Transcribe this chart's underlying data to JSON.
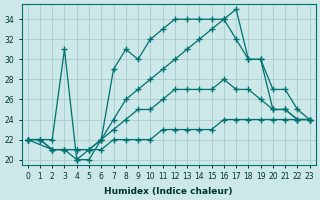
{
  "background_color": "#cce8e8",
  "grid_color": "#aacccc",
  "line_color": "#007070",
  "xlabel": "Humidex (Indice chaleur)",
  "xlim": [
    -0.5,
    23.5
  ],
  "ylim": [
    19.5,
    35.5
  ],
  "yticks": [
    20,
    22,
    24,
    26,
    28,
    30,
    32,
    34
  ],
  "xticks": [
    0,
    1,
    2,
    3,
    4,
    5,
    6,
    7,
    8,
    9,
    10,
    11,
    12,
    13,
    14,
    15,
    16,
    17,
    18,
    19,
    20,
    21,
    22,
    23
  ],
  "line1": {
    "x": [
      0,
      1,
      2,
      3,
      4,
      5,
      6,
      7,
      8,
      9,
      10,
      11,
      12,
      13,
      14,
      15,
      16,
      17,
      18,
      19,
      20,
      21,
      22,
      23
    ],
    "y": [
      22,
      22,
      22,
      31,
      20,
      20,
      22,
      29,
      31,
      30,
      32,
      33,
      34,
      34,
      34,
      34,
      34,
      35,
      30,
      30,
      25,
      25,
      24,
      24
    ]
  },
  "line2": {
    "x": [
      0,
      2,
      3,
      4,
      5,
      6,
      7,
      8,
      9,
      10,
      11,
      12,
      13,
      14,
      15,
      16,
      17,
      18,
      19,
      20,
      21,
      22,
      23
    ],
    "y": [
      22,
      21,
      21,
      20,
      21,
      22,
      24,
      26,
      27,
      28,
      29,
      30,
      31,
      32,
      33,
      34,
      32,
      30,
      30,
      27,
      27,
      25,
      24
    ]
  },
  "line3": {
    "x": [
      0,
      1,
      2,
      3,
      4,
      5,
      6,
      7,
      8,
      9,
      10,
      11,
      12,
      13,
      14,
      15,
      16,
      17,
      18,
      19,
      20,
      21,
      22,
      23
    ],
    "y": [
      22,
      22,
      21,
      21,
      21,
      21,
      22,
      23,
      24,
      25,
      25,
      26,
      27,
      27,
      27,
      27,
      28,
      27,
      27,
      26,
      25,
      25,
      24,
      24
    ]
  },
  "line4": {
    "x": [
      0,
      1,
      2,
      3,
      4,
      5,
      6,
      7,
      8,
      9,
      10,
      11,
      12,
      13,
      14,
      15,
      16,
      17,
      18,
      19,
      20,
      21,
      22,
      23
    ],
    "y": [
      22,
      22,
      21,
      21,
      21,
      21,
      21,
      22,
      22,
      22,
      22,
      23,
      23,
      23,
      23,
      23,
      24,
      24,
      24,
      24,
      24,
      24,
      24,
      24
    ]
  }
}
